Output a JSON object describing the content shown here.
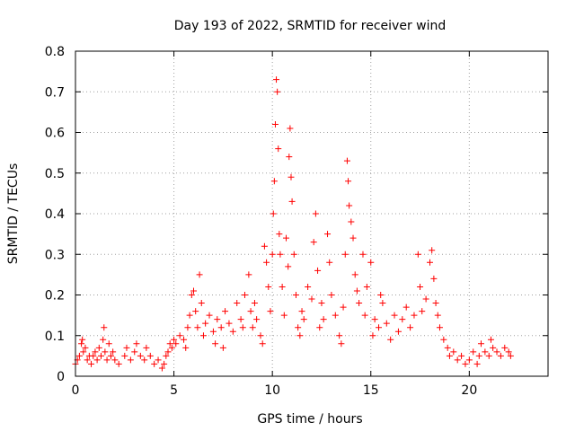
{
  "chart_data": {
    "type": "scatter",
    "title": "Day 193 of 2022, SRMTID for receiver wind",
    "xlabel": "GPS time / hours",
    "ylabel": "SRMTID / TECUs",
    "xlim": [
      0,
      24
    ],
    "ylim": [
      0,
      0.8
    ],
    "xticks": [
      0,
      5,
      10,
      15,
      20
    ],
    "yticks": [
      0,
      0.1,
      0.2,
      0.3,
      0.4,
      0.5,
      0.6,
      0.7,
      0.8
    ],
    "xtick_labels": [
      "0",
      "5",
      "10",
      "15",
      "20"
    ],
    "ytick_labels": [
      "0",
      "0.1",
      "0.2",
      "0.3",
      "0.4",
      "0.5",
      "0.6",
      "0.7",
      "0.8"
    ],
    "grid": true,
    "marker": "+",
    "series": [
      {
        "name": "SRMTID",
        "color": "#ff0000",
        "points": [
          [
            0.0,
            0.03
          ],
          [
            0.1,
            0.04
          ],
          [
            0.2,
            0.05
          ],
          [
            0.3,
            0.08
          ],
          [
            0.35,
            0.09
          ],
          [
            0.4,
            0.06
          ],
          [
            0.5,
            0.07
          ],
          [
            0.6,
            0.04
          ],
          [
            0.7,
            0.05
          ],
          [
            0.8,
            0.03
          ],
          [
            0.9,
            0.05
          ],
          [
            1.0,
            0.06
          ],
          [
            1.1,
            0.04
          ],
          [
            1.2,
            0.07
          ],
          [
            1.3,
            0.05
          ],
          [
            1.4,
            0.09
          ],
          [
            1.45,
            0.12
          ],
          [
            1.5,
            0.06
          ],
          [
            1.6,
            0.04
          ],
          [
            1.7,
            0.08
          ],
          [
            1.8,
            0.05
          ],
          [
            1.9,
            0.06
          ],
          [
            2.0,
            0.04
          ],
          [
            2.2,
            0.03
          ],
          [
            2.5,
            0.05
          ],
          [
            2.6,
            0.07
          ],
          [
            2.8,
            0.04
          ],
          [
            3.0,
            0.06
          ],
          [
            3.1,
            0.08
          ],
          [
            3.3,
            0.05
          ],
          [
            3.5,
            0.04
          ],
          [
            3.6,
            0.07
          ],
          [
            3.8,
            0.05
          ],
          [
            4.0,
            0.03
          ],
          [
            4.2,
            0.04
          ],
          [
            4.4,
            0.02
          ],
          [
            4.5,
            0.03
          ],
          [
            4.6,
            0.05
          ],
          [
            4.7,
            0.06
          ],
          [
            4.8,
            0.08
          ],
          [
            4.9,
            0.07
          ],
          [
            5.0,
            0.09
          ],
          [
            5.1,
            0.08
          ],
          [
            5.3,
            0.1
          ],
          [
            5.5,
            0.09
          ],
          [
            5.6,
            0.07
          ],
          [
            5.7,
            0.12
          ],
          [
            5.8,
            0.15
          ],
          [
            5.9,
            0.2
          ],
          [
            6.0,
            0.21
          ],
          [
            6.1,
            0.16
          ],
          [
            6.2,
            0.12
          ],
          [
            6.3,
            0.25
          ],
          [
            6.4,
            0.18
          ],
          [
            6.5,
            0.1
          ],
          [
            6.6,
            0.13
          ],
          [
            6.8,
            0.15
          ],
          [
            7.0,
            0.11
          ],
          [
            7.1,
            0.08
          ],
          [
            7.2,
            0.14
          ],
          [
            7.4,
            0.12
          ],
          [
            7.5,
            0.07
          ],
          [
            7.6,
            0.16
          ],
          [
            7.8,
            0.13
          ],
          [
            8.0,
            0.11
          ],
          [
            8.2,
            0.18
          ],
          [
            8.4,
            0.14
          ],
          [
            8.5,
            0.12
          ],
          [
            8.6,
            0.2
          ],
          [
            8.8,
            0.25
          ],
          [
            8.9,
            0.16
          ],
          [
            9.0,
            0.12
          ],
          [
            9.1,
            0.18
          ],
          [
            9.2,
            0.14
          ],
          [
            9.4,
            0.1
          ],
          [
            9.5,
            0.08
          ],
          [
            9.6,
            0.32
          ],
          [
            9.7,
            0.28
          ],
          [
            9.8,
            0.22
          ],
          [
            9.9,
            0.16
          ],
          [
            10.0,
            0.3
          ],
          [
            10.05,
            0.4
          ],
          [
            10.1,
            0.48
          ],
          [
            10.15,
            0.62
          ],
          [
            10.2,
            0.73
          ],
          [
            10.25,
            0.7
          ],
          [
            10.3,
            0.56
          ],
          [
            10.35,
            0.35
          ],
          [
            10.4,
            0.3
          ],
          [
            10.5,
            0.22
          ],
          [
            10.6,
            0.15
          ],
          [
            10.7,
            0.34
          ],
          [
            10.8,
            0.27
          ],
          [
            10.85,
            0.54
          ],
          [
            10.9,
            0.61
          ],
          [
            10.95,
            0.49
          ],
          [
            11.0,
            0.43
          ],
          [
            11.1,
            0.3
          ],
          [
            11.2,
            0.2
          ],
          [
            11.3,
            0.12
          ],
          [
            11.4,
            0.1
          ],
          [
            11.5,
            0.16
          ],
          [
            11.6,
            0.14
          ],
          [
            11.8,
            0.22
          ],
          [
            12.0,
            0.19
          ],
          [
            12.1,
            0.33
          ],
          [
            12.2,
            0.4
          ],
          [
            12.3,
            0.26
          ],
          [
            12.4,
            0.12
          ],
          [
            12.5,
            0.18
          ],
          [
            12.6,
            0.14
          ],
          [
            12.8,
            0.35
          ],
          [
            12.9,
            0.28
          ],
          [
            13.0,
            0.2
          ],
          [
            13.2,
            0.15
          ],
          [
            13.4,
            0.1
          ],
          [
            13.5,
            0.08
          ],
          [
            13.6,
            0.17
          ],
          [
            13.7,
            0.3
          ],
          [
            13.8,
            0.53
          ],
          [
            13.85,
            0.48
          ],
          [
            13.9,
            0.42
          ],
          [
            14.0,
            0.38
          ],
          [
            14.1,
            0.34
          ],
          [
            14.2,
            0.25
          ],
          [
            14.3,
            0.21
          ],
          [
            14.4,
            0.18
          ],
          [
            14.6,
            0.3
          ],
          [
            14.7,
            0.15
          ],
          [
            14.8,
            0.22
          ],
          [
            15.0,
            0.28
          ],
          [
            15.1,
            0.1
          ],
          [
            15.2,
            0.14
          ],
          [
            15.4,
            0.12
          ],
          [
            15.5,
            0.2
          ],
          [
            15.6,
            0.18
          ],
          [
            15.8,
            0.13
          ],
          [
            16.0,
            0.09
          ],
          [
            16.2,
            0.15
          ],
          [
            16.4,
            0.11
          ],
          [
            16.6,
            0.14
          ],
          [
            16.8,
            0.17
          ],
          [
            17.0,
            0.12
          ],
          [
            17.2,
            0.15
          ],
          [
            17.4,
            0.3
          ],
          [
            17.5,
            0.22
          ],
          [
            17.6,
            0.16
          ],
          [
            17.8,
            0.19
          ],
          [
            18.0,
            0.28
          ],
          [
            18.1,
            0.31
          ],
          [
            18.2,
            0.24
          ],
          [
            18.3,
            0.18
          ],
          [
            18.4,
            0.15
          ],
          [
            18.5,
            0.12
          ],
          [
            18.7,
            0.09
          ],
          [
            18.9,
            0.07
          ],
          [
            19.0,
            0.05
          ],
          [
            19.2,
            0.06
          ],
          [
            19.4,
            0.04
          ],
          [
            19.6,
            0.05
          ],
          [
            19.8,
            0.03
          ],
          [
            20.0,
            0.04
          ],
          [
            20.2,
            0.06
          ],
          [
            20.4,
            0.03
          ],
          [
            20.5,
            0.05
          ],
          [
            20.6,
            0.08
          ],
          [
            20.8,
            0.06
          ],
          [
            21.0,
            0.05
          ],
          [
            21.1,
            0.09
          ],
          [
            21.2,
            0.07
          ],
          [
            21.4,
            0.06
          ],
          [
            21.6,
            0.05
          ],
          [
            21.8,
            0.07
          ],
          [
            22.0,
            0.06
          ],
          [
            22.1,
            0.05
          ]
        ]
      }
    ]
  },
  "colors": {
    "points": "#ff0000",
    "grid": "#a0a0a0",
    "axes": "#000000"
  }
}
